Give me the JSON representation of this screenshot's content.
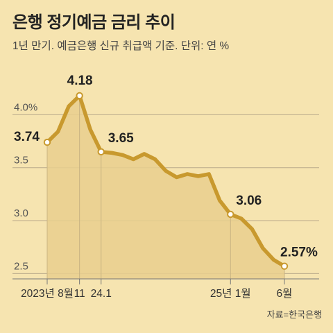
{
  "header": {
    "title": "은행 정기예금 금리 추이",
    "subtitle": "1년 만기. 예금은행 신규 취급액 기준. 단위: 연 %"
  },
  "footer": {
    "source": "자료=한국은행"
  },
  "colors": {
    "background": "#f6e4b0",
    "line": "#c8992e",
    "area": "#e9cf8e",
    "grid": "#b9a98a"
  },
  "chart_data": {
    "type": "area",
    "ylim": [
      2.45,
      4.35
    ],
    "yticks": [
      {
        "value": 4.0,
        "label": "4.0%"
      },
      {
        "value": 3.5,
        "label": "3.5"
      },
      {
        "value": 3.0,
        "label": "3.0"
      },
      {
        "value": 2.5,
        "label": "2.5"
      }
    ],
    "xticks": [
      {
        "index": 0,
        "label": "2023년 8월"
      },
      {
        "index": 3,
        "label": "11"
      },
      {
        "index": 5,
        "label": "24.1"
      },
      {
        "index": 17,
        "label": "25년 1월"
      },
      {
        "index": 22,
        "label": "6월"
      }
    ],
    "series": [
      {
        "values": [
          3.74,
          3.84,
          4.08,
          4.18,
          3.86,
          3.65,
          3.64,
          3.62,
          3.58,
          3.63,
          3.58,
          3.47,
          3.41,
          3.44,
          3.42,
          3.44,
          3.19,
          3.06,
          3.02,
          2.92,
          2.74,
          2.63,
          2.57
        ]
      }
    ],
    "labeled_points": [
      {
        "index": 0,
        "label": "3.74"
      },
      {
        "index": 3,
        "label": "4.18"
      },
      {
        "index": 5,
        "label": "3.65"
      },
      {
        "index": 17,
        "label": "3.06"
      },
      {
        "index": 22,
        "label": "2.57%"
      }
    ]
  }
}
